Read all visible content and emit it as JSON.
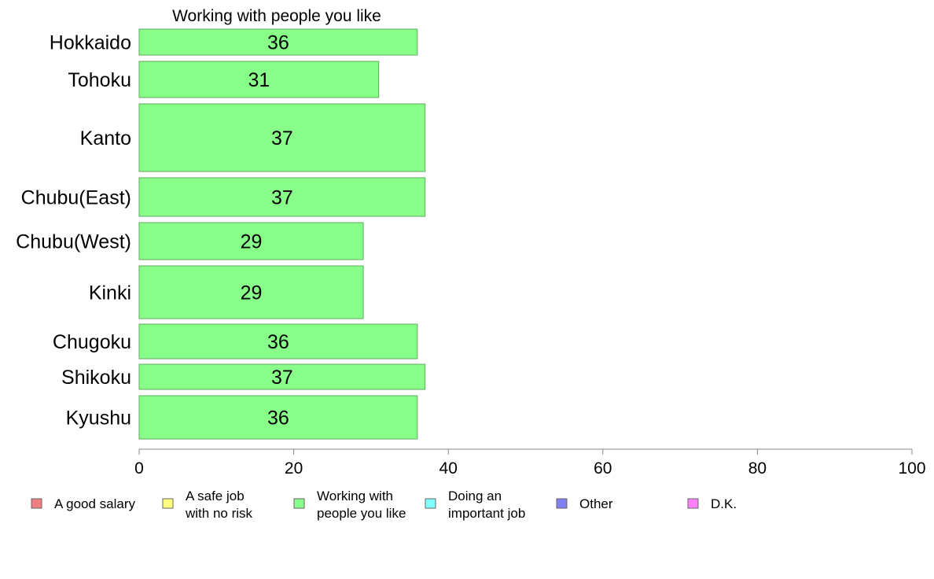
{
  "chart_data": {
    "type": "bar",
    "orientation": "horizontal",
    "title": "Working with people you like",
    "categories": [
      "Hokkaido",
      "Tohoku",
      "Kanto",
      "Chubu(East)",
      "Chubu(West)",
      "Kinki",
      "Chugoku",
      "Shikoku",
      "Kyushu"
    ],
    "values": [
      36,
      31,
      37,
      37,
      29,
      29,
      36,
      37,
      36
    ],
    "data_labels": [
      "36",
      "31",
      "37",
      "37",
      "29",
      "29",
      "36",
      "37",
      "36"
    ],
    "bar_color": "#88ff88",
    "bar_stroke": "#5fa85f",
    "xlim": [
      0,
      100
    ],
    "xticks": [
      "0",
      "20",
      "40",
      "60",
      "80",
      "100"
    ],
    "grid": false,
    "legend": {
      "placement": "bottom",
      "items": [
        {
          "lines": [
            "A good salary"
          ],
          "color": "#f08080"
        },
        {
          "lines": [
            "A safe job",
            "with no risk"
          ],
          "color": "#ffff80"
        },
        {
          "lines": [
            "Working with",
            "people you like"
          ],
          "color": "#88ff88"
        },
        {
          "lines": [
            "Doing an",
            "important job"
          ],
          "color": "#80ffff"
        },
        {
          "lines": [
            "Other"
          ],
          "color": "#8080f0"
        },
        {
          "lines": [
            "D.K."
          ],
          "color": "#ff80ff"
        }
      ]
    }
  }
}
